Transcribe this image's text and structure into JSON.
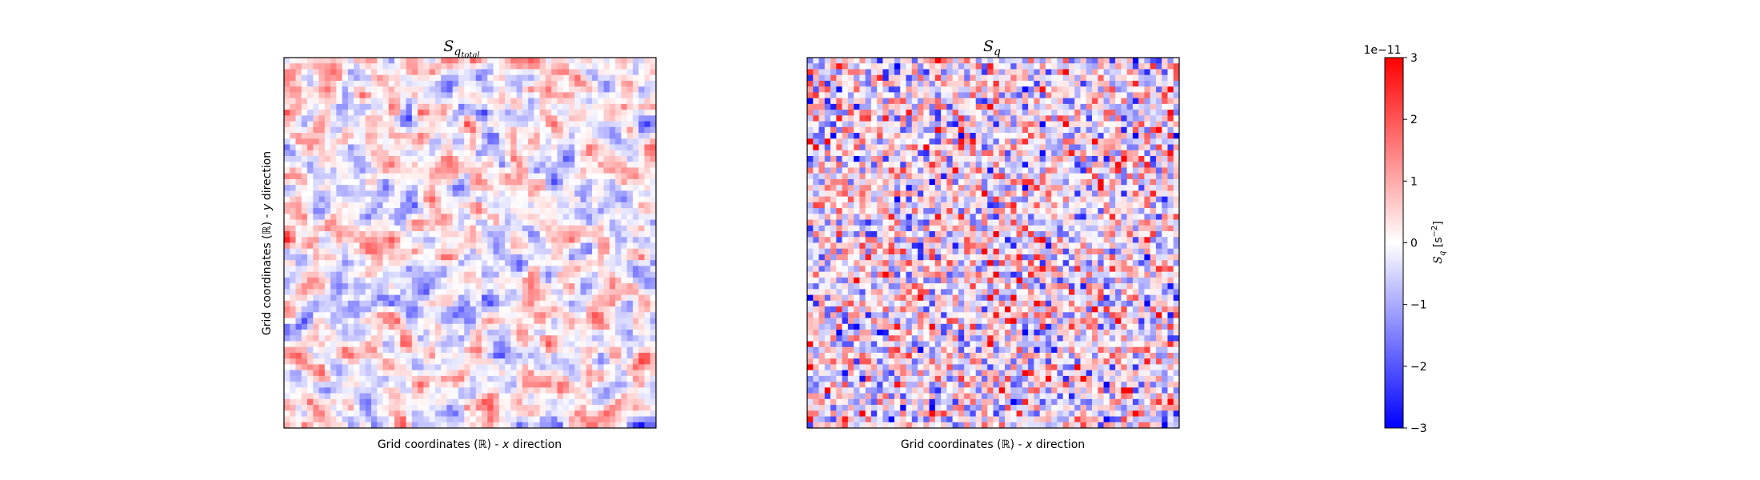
{
  "chart_data": [
    {
      "type": "heatmap",
      "title": "S",
      "title_sub": "q",
      "title_subsub": "total",
      "xlabel_pre": "Grid coordinates (",
      "xlabel_sym": "ℝ",
      "xlabel_mid": ") - ",
      "xlabel_var": "x",
      "xlabel_post": " direction",
      "ylabel_pre": "Grid coordinates (",
      "ylabel_sym": "ℝ",
      "ylabel_mid": ") - ",
      "ylabel_var": "y",
      "ylabel_post": " direction",
      "grid_size": [
        64,
        64
      ],
      "xticks": [],
      "yticks": [],
      "colormap": "bwr",
      "values_note": "random-like field, values in [-3e-11, 3e-11] s^-2"
    },
    {
      "type": "heatmap",
      "title": "S",
      "title_sub": "q",
      "xlabel_pre": "Grid coordinates (",
      "xlabel_sym": "ℝ",
      "xlabel_mid": ") - ",
      "xlabel_var": "x",
      "xlabel_post": " direction",
      "grid_size": [
        64,
        64
      ],
      "xticks": [],
      "yticks": [],
      "colormap": "bwr"
    }
  ],
  "colorbar": {
    "scale_label": "1e−11",
    "ticks": [
      {
        "value": 3,
        "label": "3"
      },
      {
        "value": 2,
        "label": "2"
      },
      {
        "value": 1,
        "label": "1"
      },
      {
        "value": 0,
        "label": "0"
      },
      {
        "value": -1,
        "label": "−1"
      },
      {
        "value": -2,
        "label": "−2"
      },
      {
        "value": -3,
        "label": "−3"
      }
    ],
    "label_main": "S",
    "label_sub": "q",
    "label_unit": " [s",
    "label_exp": "−2",
    "label_close": "]",
    "vmin": -3,
    "vmax": 3,
    "colors": {
      "low": "#0000ff",
      "mid": "#ffffff",
      "high": "#ff0000"
    }
  }
}
